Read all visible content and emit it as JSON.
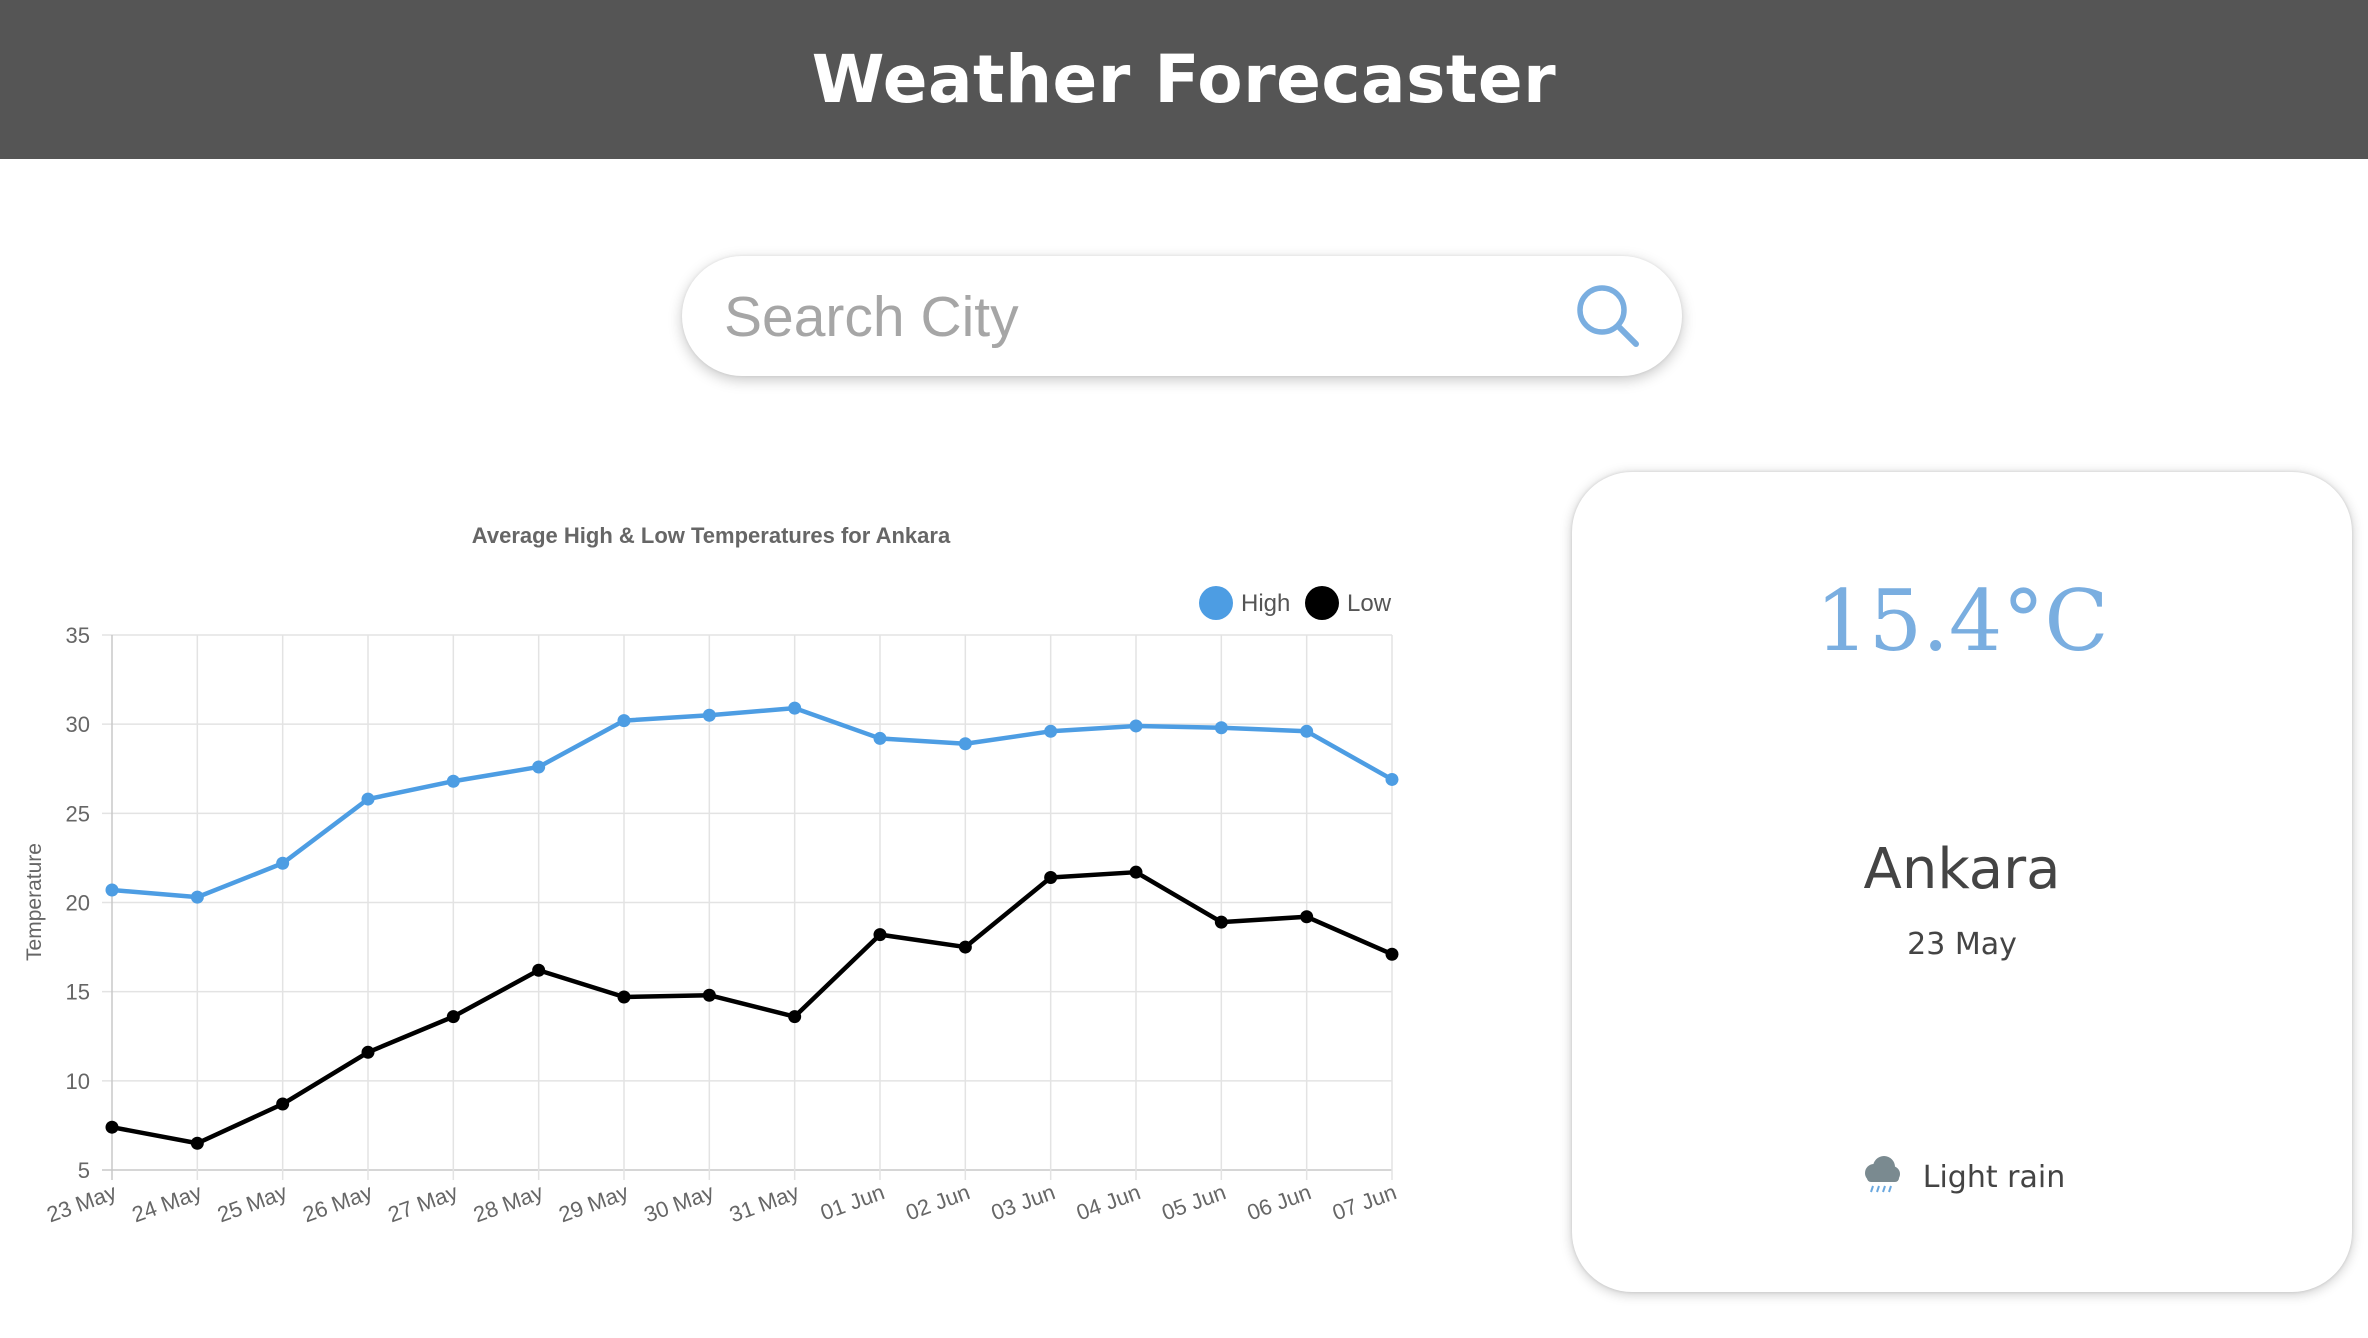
{
  "header": {
    "title": "Weather Forecaster"
  },
  "search": {
    "placeholder": "Search City",
    "value": "",
    "icon": "search-icon"
  },
  "colors": {
    "header_bg": "#555555",
    "high": "#4d9de3",
    "low": "#000000",
    "temp": "#7aaee0"
  },
  "chart_data": {
    "type": "line",
    "title": "Average High & Low Temperatures for Ankara",
    "xlabel": "",
    "ylabel": "Temperature",
    "ylim": [
      5,
      35
    ],
    "yticks": [
      5,
      10,
      15,
      20,
      25,
      30,
      35
    ],
    "grid": true,
    "legend_position": "top-right",
    "categories": [
      "23 May",
      "24 May",
      "25 May",
      "26 May",
      "27 May",
      "28 May",
      "29 May",
      "30 May",
      "31 May",
      "01 Jun",
      "02 Jun",
      "03 Jun",
      "04 Jun",
      "05 Jun",
      "06 Jun",
      "07 Jun"
    ],
    "series": [
      {
        "name": "High",
        "color": "#4d9de3",
        "values": [
          20.7,
          20.3,
          22.2,
          25.8,
          26.8,
          27.6,
          30.2,
          30.5,
          30.9,
          29.2,
          28.9,
          29.6,
          29.9,
          29.8,
          29.6,
          26.9
        ]
      },
      {
        "name": "Low",
        "color": "#000000",
        "values": [
          7.4,
          6.5,
          8.7,
          11.6,
          13.6,
          16.2,
          14.7,
          14.8,
          13.6,
          18.2,
          17.5,
          21.4,
          21.7,
          18.9,
          19.2,
          17.1
        ]
      }
    ]
  },
  "card": {
    "temperature": "15.4°C",
    "city": "Ankara",
    "date": "23 May",
    "condition": "Light rain",
    "condition_icon": "rain-cloud-icon"
  }
}
